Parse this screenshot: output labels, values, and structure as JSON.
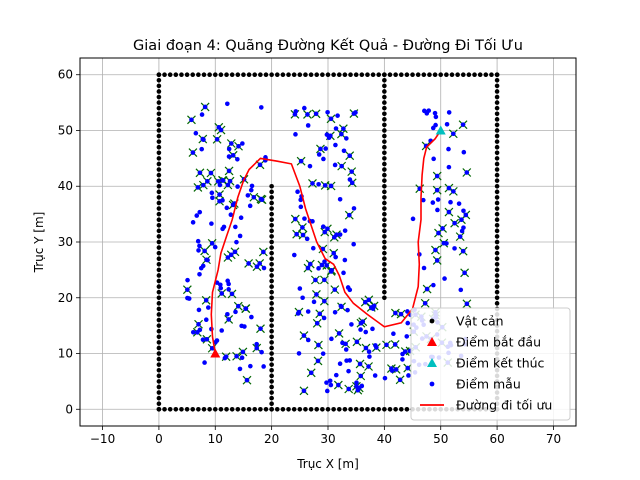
{
  "chart_data": {
    "type": "scatter",
    "title": "Giai đoạn 4: Quãng Đường Kết Quả - Đường Đi Tối Ưu",
    "xlabel": "Trục X [m]",
    "ylabel": "Trục Y [m]",
    "xlim": [
      -14,
      74
    ],
    "ylim": [
      -3,
      63
    ],
    "xticks": [
      -10,
      0,
      10,
      20,
      30,
      40,
      50,
      60,
      70
    ],
    "yticks": [
      0,
      10,
      20,
      30,
      40,
      50,
      60
    ],
    "grid": true,
    "legend_position": "lower-right",
    "legend": [
      {
        "label": "Vật cản",
        "marker": "dot",
        "color": "#000000"
      },
      {
        "label": "Điểm bắt đầu",
        "marker": "triangle",
        "color": "#ff0000"
      },
      {
        "label": "Điểm kết thúc",
        "marker": "triangle",
        "color": "#00bfbf"
      },
      {
        "label": "Điểm mẫu",
        "marker": "dot",
        "color": "#0000ff"
      },
      {
        "label": "Đường đi tối ưu",
        "marker": "line",
        "color": "#ff0000"
      }
    ],
    "obstacles": {
      "segments": [
        {
          "from": [
            0,
            0
          ],
          "to": [
            60,
            0
          ]
        },
        {
          "from": [
            0,
            60
          ],
          "to": [
            60,
            60
          ]
        },
        {
          "from": [
            0,
            0
          ],
          "to": [
            0,
            60
          ]
        },
        {
          "from": [
            60,
            0
          ],
          "to": [
            60,
            60
          ]
        },
        {
          "from": [
            20,
            0
          ],
          "to": [
            20,
            40
          ]
        },
        {
          "from": [
            40,
            20
          ],
          "to": [
            40,
            60
          ]
        }
      ],
      "spacing": 1
    },
    "start": [
      10,
      10
    ],
    "goal": [
      50,
      50
    ],
    "optimal_path": [
      [
        10,
        10
      ],
      [
        9.5,
        13
      ],
      [
        9.3,
        17
      ],
      [
        9.5,
        21
      ],
      [
        10.5,
        25
      ],
      [
        11,
        28
      ],
      [
        12,
        31
      ],
      [
        13,
        34
      ],
      [
        14,
        38
      ],
      [
        15,
        41
      ],
      [
        16,
        43
      ],
      [
        18,
        45
      ],
      [
        21,
        44.5
      ],
      [
        23.5,
        44
      ],
      [
        25,
        40
      ],
      [
        26,
        36
      ],
      [
        27,
        33
      ],
      [
        28,
        30
      ],
      [
        29.5,
        27
      ],
      [
        31,
        26
      ],
      [
        32,
        24
      ],
      [
        33,
        21
      ],
      [
        34.5,
        19
      ],
      [
        37,
        17
      ],
      [
        40,
        14.8
      ],
      [
        43,
        15.5
      ],
      [
        45,
        18
      ],
      [
        46,
        22
      ],
      [
        46.2,
        26
      ],
      [
        46,
        30
      ],
      [
        46.5,
        34
      ],
      [
        46.5,
        38
      ],
      [
        46.7,
        42
      ],
      [
        47,
        45
      ],
      [
        47.5,
        47
      ],
      [
        49,
        48.5
      ],
      [
        50,
        50
      ]
    ],
    "tree_node_color": "#0000ff",
    "tree_edge_color": "#006400",
    "path_color": "#ff0000"
  }
}
